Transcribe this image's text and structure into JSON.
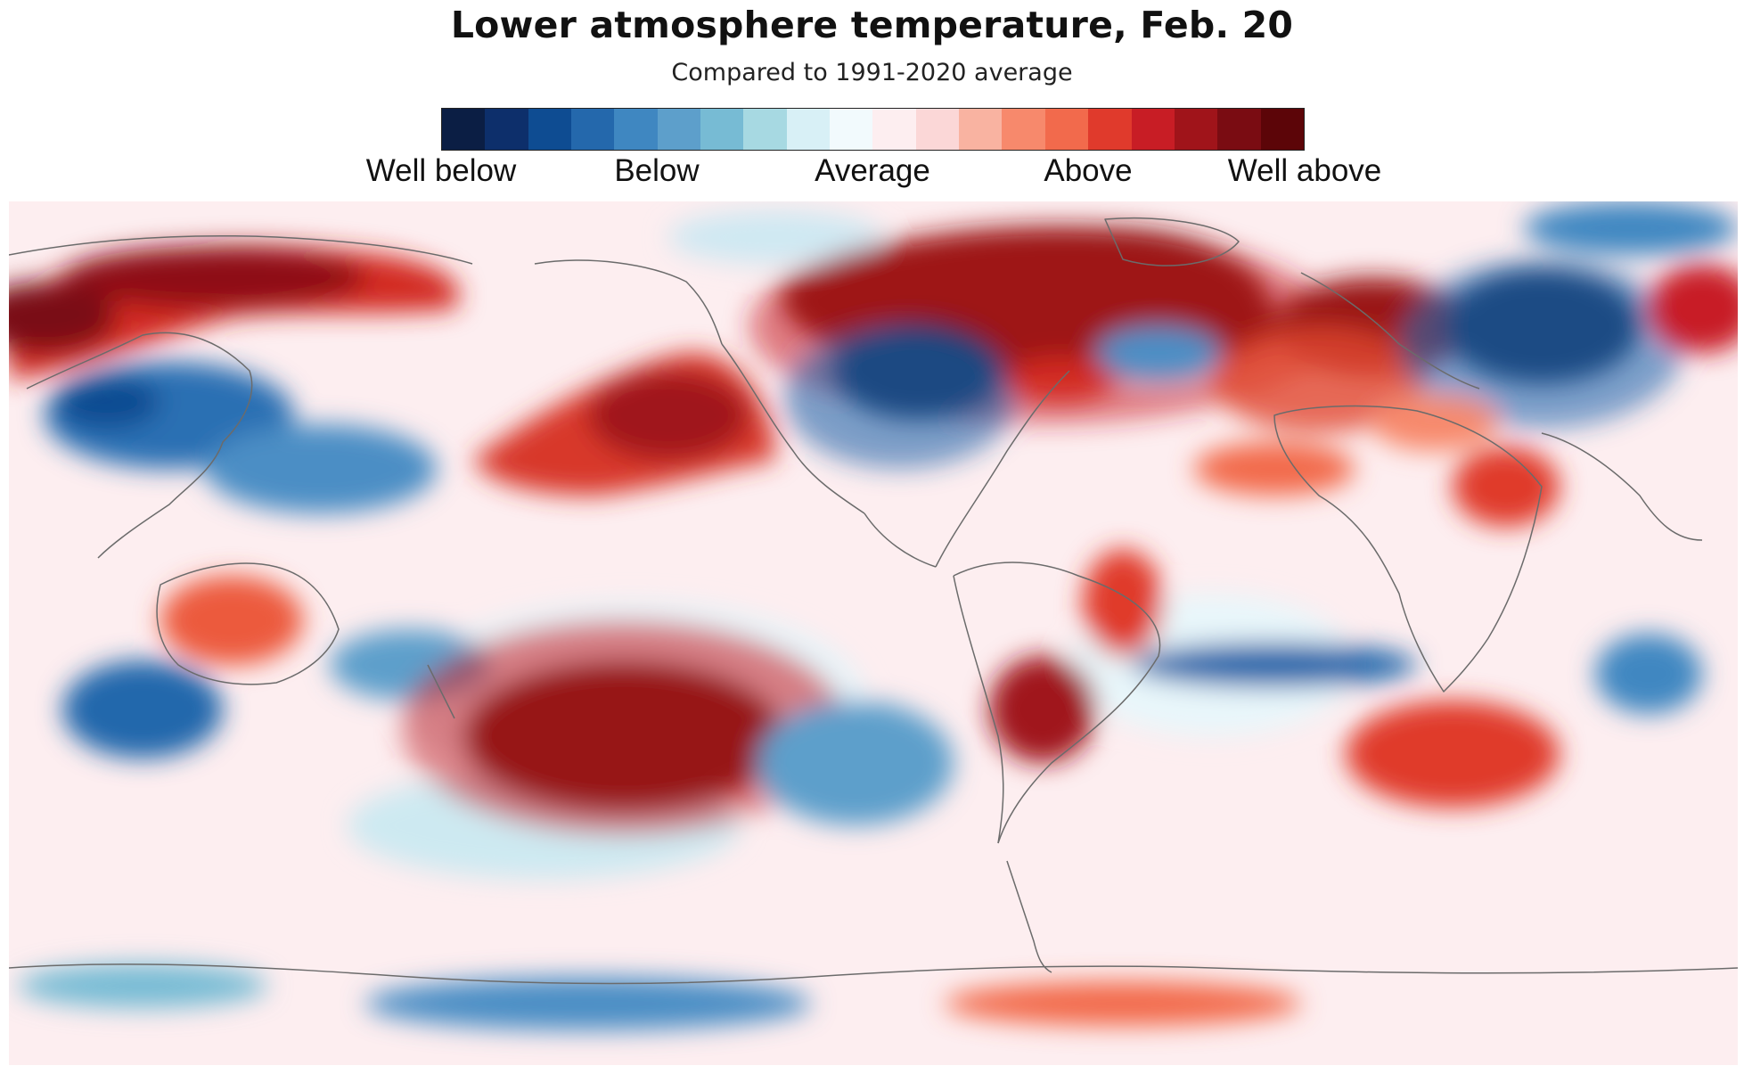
{
  "title": "Lower atmosphere temperature, Feb. 20",
  "subtitle": "Compared to 1991-2020 average",
  "legend": {
    "colors": [
      "#0b1e44",
      "#0d2f6b",
      "#0e4c92",
      "#2468ac",
      "#3f87c1",
      "#5d9fcb",
      "#77bbd4",
      "#a7d9e2",
      "#d8f0f6",
      "#f2fafd",
      "#fdeef0",
      "#fbd7d7",
      "#f9b3a1",
      "#f7896c",
      "#f26a4c",
      "#e03a2c",
      "#c81d25",
      "#a0141a",
      "#7a0c12",
      "#5c0508"
    ],
    "labels": [
      "Well below",
      "Below",
      "Average",
      "Above",
      "Well above"
    ]
  },
  "map": {
    "projection": "equirectangular",
    "central_meridian": "180",
    "background_color": "#fdeef0",
    "coastline_color": "#6b6b6b"
  }
}
